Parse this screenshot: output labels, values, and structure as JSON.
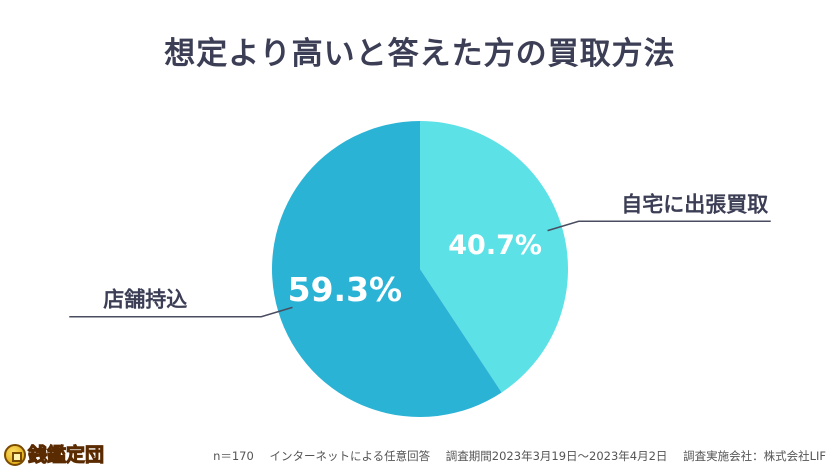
{
  "title": "想定より高いと答えた方の買取方法",
  "chart_data": {
    "type": "pie",
    "title": "想定より高いと答えた方の買取方法",
    "slices": [
      {
        "label": "自宅に出張買取",
        "value": 40.7,
        "value_label": "40.7%",
        "color": "#5ce1e6"
      },
      {
        "label": "店舗持込",
        "value": 59.3,
        "value_label": "59.3%",
        "color": "#2bb3d6"
      }
    ],
    "start": "12 o'clock",
    "direction": "clockwise",
    "legend": "none"
  },
  "footer": {
    "sample": "n＝170",
    "method": "インターネットによる任意回答",
    "period": "調査期間2023年3月19日～2023年4月2日",
    "org": "調査実施会社：株式会社LIF"
  },
  "logo": {
    "text": "銭鑑定団",
    "icon": "coin-icon"
  }
}
